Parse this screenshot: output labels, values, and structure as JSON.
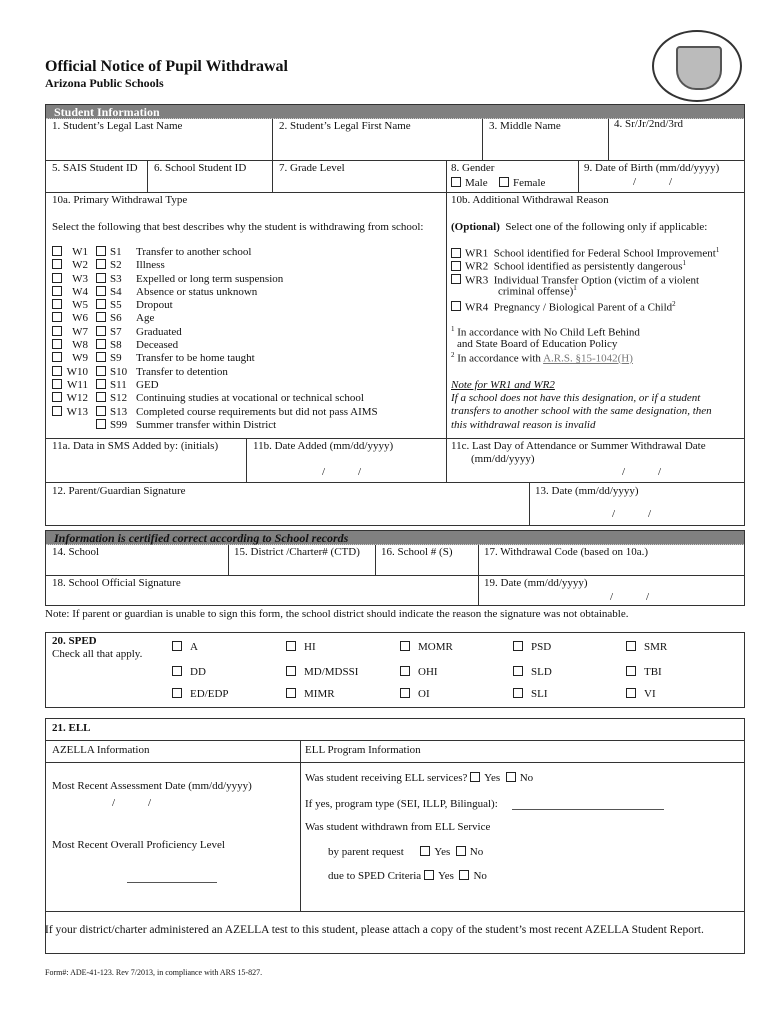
{
  "header": {
    "title": "Official Notice of Pupil Withdrawal",
    "subtitle": "Arizona Public Schools",
    "seal_icon": "arizona-state-seal"
  },
  "student_info": {
    "section_label": "Student Information",
    "last_name": "1. Student’s Legal Last Name",
    "first_name": "2. Student’s Legal First Name",
    "middle_name": "3. Middle Name",
    "suffix": "4. Sr/Jr/2nd/3rd",
    "sais_id": "5. SAIS Student ID",
    "school_id": "6. School Student ID",
    "grade": "7. Grade Level",
    "gender": "8. Gender",
    "male": "Male",
    "female": "Female",
    "dob": "9. Date of Birth (mm/dd/yyyy)",
    "date_sep": "/            /"
  },
  "primary": {
    "label": "10a. Primary Withdrawal Type",
    "instruction": "Select the following that best describes why the student is withdrawing from school:",
    "w_codes": [
      "W1",
      "W2",
      "W3",
      "W4",
      "W5",
      "W6",
      "W7",
      "W8",
      "W9",
      "W10",
      "W11",
      "W12",
      "W13"
    ],
    "s_items": [
      {
        "code": "S1",
        "text": "Transfer to another school"
      },
      {
        "code": "S2",
        "text": "Illness"
      },
      {
        "code": "S3",
        "text": "Expelled or long term suspension"
      },
      {
        "code": "S4",
        "text": "Absence or status unknown"
      },
      {
        "code": "S5",
        "text": "Dropout"
      },
      {
        "code": "S6",
        "text": "Age"
      },
      {
        "code": "S7",
        "text": "Graduated"
      },
      {
        "code": "S8",
        "text": "Deceased"
      },
      {
        "code": "S9",
        "text": "Transfer to be home taught"
      },
      {
        "code": "S10",
        "text": "Transfer to detention"
      },
      {
        "code": "S11",
        "text": "GED"
      },
      {
        "code": "S12",
        "text": "Continuing studies at vocational or technical school"
      },
      {
        "code": "S13",
        "text": "Completed course requirements but did not pass AIMS"
      },
      {
        "code": "S99",
        "text": "Summer transfer within District"
      }
    ]
  },
  "additional": {
    "label": "10b. Additional Withdrawal Reason",
    "optional": "Optional",
    "instruction": "Select one of the following only if applicable:",
    "items": [
      {
        "text": "WR1  School identified for Federal School Improvement",
        "sup": "1"
      },
      {
        "text": "WR2  School identified as persistently dangerous",
        "sup": "1"
      },
      {
        "text": "WR3  Individual Transfer Option (victim of a violent",
        "sup": ""
      },
      {
        "text": "WR4  Pregnancy / Biological Parent of a Child",
        "sup": "2"
      }
    ],
    "wr3_cont": "criminal offense)",
    "fn1a": "In accordance with No Child Left Behind",
    "fn1b": "and State Board of Education Policy",
    "fn2": "In accordance with ",
    "fn2_link": "A.R.S. §15-1042(H)",
    "note_title": "Note for WR1 and WR2",
    "note_lines": [
      "If a school does not have this designation, or if a student",
      "transfers to another school with the same designation, then",
      "this withdrawal reason is invalid"
    ]
  },
  "row11": {
    "a": "11a. Data in SMS Added by: (initials)",
    "b": "11b. Date Added (mm/dd/yyyy)",
    "c": "11c. Last Day of Attendance or Summer Withdrawal Date",
    "c2": "(mm/dd/yyyy)"
  },
  "row12": {
    "sig": "12. Parent/Guardian Signature",
    "date": "13. Date (mm/dd/yyyy)"
  },
  "certified": {
    "section_label": "Information is certified correct according to School records",
    "school": "14. School",
    "district": "15. District /Charter# (CTD)",
    "school_no": "16. School # (S)",
    "code": "17. Withdrawal Code (based on 10a.)",
    "official_sig": "18. School Official Signature",
    "date": "19. Date (mm/dd/yyyy)"
  },
  "note": "Note: If parent or guardian is unable to sign this form, the school district should indicate the reason the signature was not obtainable.",
  "sped": {
    "title": "20. SPED",
    "hint": "Check all that apply.",
    "options": [
      [
        "A",
        "HI",
        "MOMR",
        "PSD",
        "SMR"
      ],
      [
        "DD",
        "MD/MDSSI",
        "OHI",
        "SLD",
        "TBI"
      ],
      [
        "ED/EDP",
        "MIMR",
        "OI",
        "SLI",
        "VI"
      ]
    ]
  },
  "ell": {
    "title": "21. ELL",
    "azella": "AZELLA Information",
    "program": "ELL Program Information",
    "assess_date": "Most Recent Assessment Date (mm/dd/yyyy)",
    "proficiency": "Most Recent Overall Proficiency Level",
    "receiving": "Was student receiving ELL services?",
    "yes": "Yes",
    "no": "No",
    "program_type": "If yes, program type (SEI, ILLP, Bilingual):",
    "withdrawn": "Was student withdrawn from ELL Service",
    "parent": "by parent request",
    "sped": "due to SPED Criteria",
    "attach": "If your district/charter administered an AZELLA test to this student, please attach a copy of the student’s most recent AZELLA Student Report."
  },
  "footer": "Form#: ADE-41-123. Rev 7/2013, in compliance with ARS 15-827."
}
